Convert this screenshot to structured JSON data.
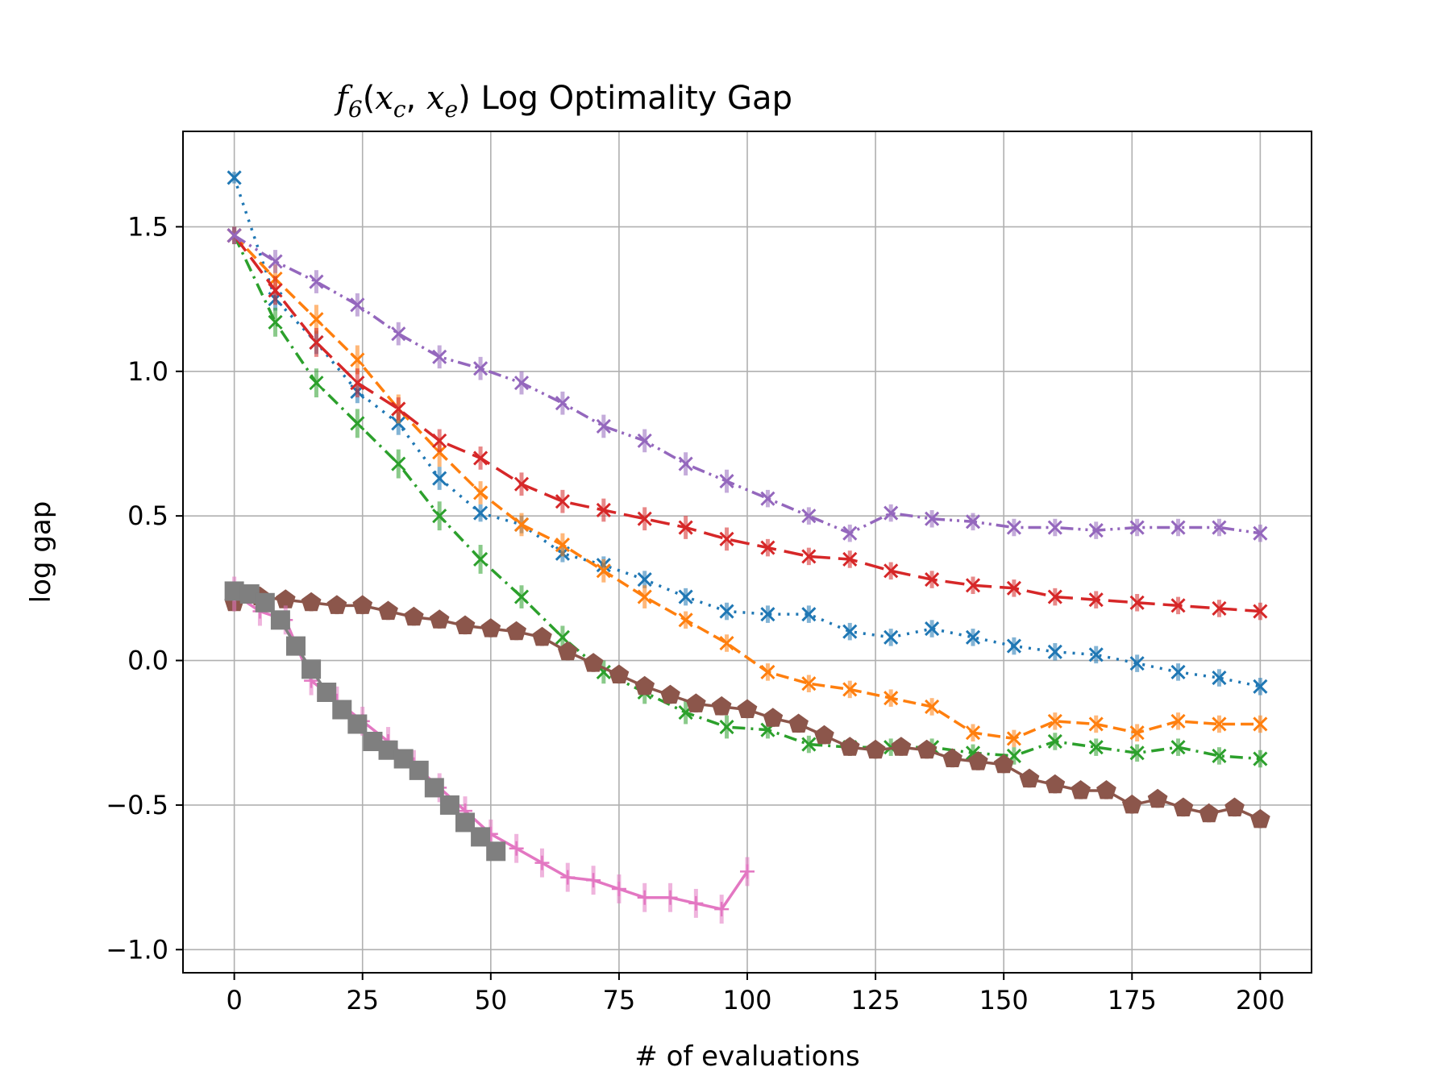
{
  "chart_data": {
    "type": "line",
    "title": {
      "func": "f",
      "sub_main": "6",
      "open": "(",
      "arg1": "x",
      "sub1": "c",
      "comma": ", ",
      "arg2": "x",
      "sub2": "e",
      "close": ")",
      "rest": " Log Optimality Gap"
    },
    "xlabel": "# of evaluations",
    "ylabel": "log gap",
    "xlim": [
      -10,
      210
    ],
    "ylim": [
      -1.08,
      1.83
    ],
    "xticks": [
      0,
      25,
      50,
      75,
      100,
      125,
      150,
      175,
      200
    ],
    "yticks": [
      -1.0,
      -0.5,
      0.0,
      0.5,
      1.0,
      1.5
    ],
    "ytick_labels": [
      "−1.0",
      "−0.5",
      "0.0",
      "0.5",
      "1.0",
      "1.5"
    ],
    "xtick_labels": [
      "0",
      "25",
      "50",
      "75",
      "100",
      "125",
      "150",
      "175",
      "200"
    ],
    "grid": true,
    "series": [
      {
        "color": "#1f77b4",
        "linestyle": "dotted",
        "marker": "x",
        "x": [
          0,
          8,
          16,
          24,
          32,
          40,
          48,
          56,
          64,
          72,
          80,
          88,
          96,
          104,
          112,
          120,
          128,
          136,
          144,
          152,
          160,
          168,
          176,
          184,
          192,
          200
        ],
        "y": [
          1.67,
          1.25,
          1.1,
          0.93,
          0.82,
          0.63,
          0.51,
          0.47,
          0.37,
          0.33,
          0.28,
          0.22,
          0.17,
          0.16,
          0.16,
          0.1,
          0.08,
          0.11,
          0.08,
          0.05,
          0.03,
          0.02,
          -0.01,
          -0.04,
          -0.06,
          -0.09
        ],
        "err": [
          0.02,
          0.04,
          0.04,
          0.04,
          0.04,
          0.04,
          0.03,
          0.03,
          0.03,
          0.03,
          0.03,
          0.03,
          0.03,
          0.03,
          0.03,
          0.03,
          0.03,
          0.03,
          0.03,
          0.03,
          0.03,
          0.03,
          0.03,
          0.03,
          0.03,
          0.03
        ]
      },
      {
        "color": "#ff7f0e",
        "linestyle": "dashed",
        "marker": "x",
        "x": [
          0,
          8,
          16,
          24,
          32,
          40,
          48,
          56,
          64,
          72,
          80,
          88,
          96,
          104,
          112,
          120,
          128,
          136,
          144,
          152,
          160,
          168,
          176,
          184,
          192,
          200
        ],
        "y": [
          1.47,
          1.32,
          1.18,
          1.04,
          0.87,
          0.72,
          0.58,
          0.47,
          0.4,
          0.31,
          0.22,
          0.14,
          0.06,
          -0.04,
          -0.08,
          -0.1,
          -0.13,
          -0.16,
          -0.25,
          -0.27,
          -0.21,
          -0.22,
          -0.25,
          -0.21,
          -0.22,
          -0.22
        ],
        "err": [
          0.03,
          0.05,
          0.05,
          0.05,
          0.05,
          0.05,
          0.04,
          0.04,
          0.04,
          0.04,
          0.04,
          0.03,
          0.03,
          0.03,
          0.03,
          0.03,
          0.03,
          0.03,
          0.03,
          0.03,
          0.03,
          0.03,
          0.03,
          0.03,
          0.03,
          0.03
        ]
      },
      {
        "color": "#2ca02c",
        "linestyle": "dashdot",
        "marker": "x",
        "x": [
          0,
          8,
          16,
          24,
          32,
          40,
          48,
          56,
          64,
          72,
          80,
          88,
          96,
          104,
          112,
          120,
          128,
          136,
          144,
          152,
          160,
          168,
          176,
          184,
          192,
          200
        ],
        "y": [
          1.47,
          1.17,
          0.96,
          0.82,
          0.68,
          0.5,
          0.35,
          0.22,
          0.08,
          -0.04,
          -0.11,
          -0.18,
          -0.23,
          -0.24,
          -0.29,
          -0.3,
          -0.3,
          -0.3,
          -0.32,
          -0.33,
          -0.28,
          -0.3,
          -0.32,
          -0.3,
          -0.33,
          -0.34
        ],
        "err": [
          0.03,
          0.05,
          0.05,
          0.05,
          0.05,
          0.05,
          0.05,
          0.04,
          0.04,
          0.04,
          0.04,
          0.04,
          0.04,
          0.03,
          0.03,
          0.03,
          0.03,
          0.03,
          0.03,
          0.03,
          0.03,
          0.03,
          0.03,
          0.03,
          0.03,
          0.03
        ]
      },
      {
        "color": "#d62728",
        "linestyle": "long-dash",
        "marker": "x",
        "x": [
          0,
          8,
          16,
          24,
          32,
          40,
          48,
          56,
          64,
          72,
          80,
          88,
          96,
          104,
          112,
          120,
          128,
          136,
          144,
          152,
          160,
          168,
          176,
          184,
          192,
          200
        ],
        "y": [
          1.47,
          1.28,
          1.1,
          0.96,
          0.87,
          0.76,
          0.7,
          0.61,
          0.55,
          0.52,
          0.49,
          0.46,
          0.42,
          0.39,
          0.36,
          0.35,
          0.31,
          0.28,
          0.26,
          0.25,
          0.22,
          0.21,
          0.2,
          0.19,
          0.18,
          0.17
        ],
        "err": [
          0.03,
          0.05,
          0.05,
          0.05,
          0.04,
          0.04,
          0.04,
          0.04,
          0.04,
          0.04,
          0.04,
          0.04,
          0.04,
          0.03,
          0.03,
          0.03,
          0.03,
          0.03,
          0.03,
          0.03,
          0.03,
          0.03,
          0.03,
          0.03,
          0.03,
          0.03
        ]
      },
      {
        "color": "#9467bd",
        "linestyle": "dash-dot-dot",
        "marker": "x",
        "x": [
          0,
          8,
          16,
          24,
          32,
          40,
          48,
          56,
          64,
          72,
          80,
          88,
          96,
          104,
          112,
          120,
          128,
          136,
          144,
          152,
          160,
          168,
          176,
          184,
          192,
          200
        ],
        "y": [
          1.47,
          1.38,
          1.31,
          1.23,
          1.13,
          1.05,
          1.01,
          0.96,
          0.89,
          0.81,
          0.76,
          0.68,
          0.62,
          0.56,
          0.5,
          0.44,
          0.51,
          0.49,
          0.48,
          0.46,
          0.46,
          0.45,
          0.46,
          0.46,
          0.46,
          0.44
        ],
        "err": [
          0.03,
          0.04,
          0.04,
          0.04,
          0.04,
          0.04,
          0.04,
          0.04,
          0.04,
          0.04,
          0.04,
          0.04,
          0.04,
          0.03,
          0.03,
          0.03,
          0.03,
          0.03,
          0.03,
          0.03,
          0.03,
          0.03,
          0.03,
          0.03,
          0.03,
          0.03
        ]
      },
      {
        "color": "#8c564b",
        "linestyle": "solid",
        "marker": "pentagon",
        "x": [
          0,
          5,
          10,
          15,
          20,
          25,
          30,
          35,
          40,
          45,
          50,
          55,
          60,
          65,
          70,
          75,
          80,
          85,
          90,
          95,
          100,
          105,
          110,
          115,
          120,
          125,
          130,
          135,
          140,
          145,
          150,
          155,
          160,
          165,
          170,
          175,
          180,
          185,
          190,
          195,
          200
        ],
        "y": [
          0.2,
          0.22,
          0.21,
          0.2,
          0.19,
          0.19,
          0.17,
          0.15,
          0.14,
          0.12,
          0.11,
          0.1,
          0.08,
          0.03,
          -0.01,
          -0.05,
          -0.09,
          -0.12,
          -0.15,
          -0.16,
          -0.17,
          -0.2,
          -0.22,
          -0.26,
          -0.3,
          -0.31,
          -0.3,
          -0.31,
          -0.34,
          -0.35,
          -0.36,
          -0.41,
          -0.43,
          -0.45,
          -0.45,
          -0.5,
          -0.48,
          -0.51,
          -0.53,
          -0.51,
          -0.55
        ],
        "err": [
          0.03,
          0.03,
          0.03,
          0.03,
          0.03,
          0.03,
          0.03,
          0.03,
          0.03,
          0.03,
          0.03,
          0.03,
          0.03,
          0.03,
          0.03,
          0.03,
          0.03,
          0.03,
          0.03,
          0.03,
          0.03,
          0.03,
          0.03,
          0.03,
          0.03,
          0.03,
          0.03,
          0.03,
          0.03,
          0.03,
          0.03,
          0.03,
          0.03,
          0.03,
          0.03,
          0.03,
          0.03,
          0.03,
          0.03,
          0.03,
          0.03
        ]
      },
      {
        "color": "#e377c2",
        "linestyle": "solid",
        "marker": "plus",
        "x": [
          0,
          5,
          10,
          15,
          20,
          25,
          30,
          35,
          40,
          45,
          50,
          55,
          60,
          65,
          70,
          75,
          80,
          85,
          90,
          95,
          100
        ],
        "y": [
          0.23,
          0.17,
          0.14,
          -0.07,
          -0.14,
          -0.21,
          -0.28,
          -0.36,
          -0.44,
          -0.52,
          -0.6,
          -0.65,
          -0.7,
          -0.75,
          -0.76,
          -0.79,
          -0.82,
          -0.82,
          -0.84,
          -0.86,
          -0.73
        ],
        "err": [
          0.06,
          0.05,
          0.05,
          0.05,
          0.05,
          0.05,
          0.05,
          0.05,
          0.05,
          0.05,
          0.05,
          0.05,
          0.05,
          0.05,
          0.05,
          0.05,
          0.05,
          0.05,
          0.05,
          0.05,
          0.05
        ]
      },
      {
        "color": "#7f7f7f",
        "linestyle": "solid",
        "marker": "square",
        "x": [
          0,
          3,
          6,
          9,
          12,
          15,
          18,
          21,
          24,
          27,
          30,
          33,
          36,
          39,
          42,
          45,
          48,
          51
        ],
        "y": [
          0.24,
          0.23,
          0.2,
          0.14,
          0.05,
          -0.03,
          -0.11,
          -0.17,
          -0.22,
          -0.28,
          -0.31,
          -0.34,
          -0.38,
          -0.44,
          -0.5,
          -0.56,
          -0.61,
          -0.66
        ],
        "err": [
          0.03,
          0.03,
          0.03,
          0.03,
          0.03,
          0.03,
          0.03,
          0.03,
          0.03,
          0.03,
          0.03,
          0.03,
          0.03,
          0.03,
          0.03,
          0.03,
          0.03,
          0.03
        ]
      }
    ]
  }
}
